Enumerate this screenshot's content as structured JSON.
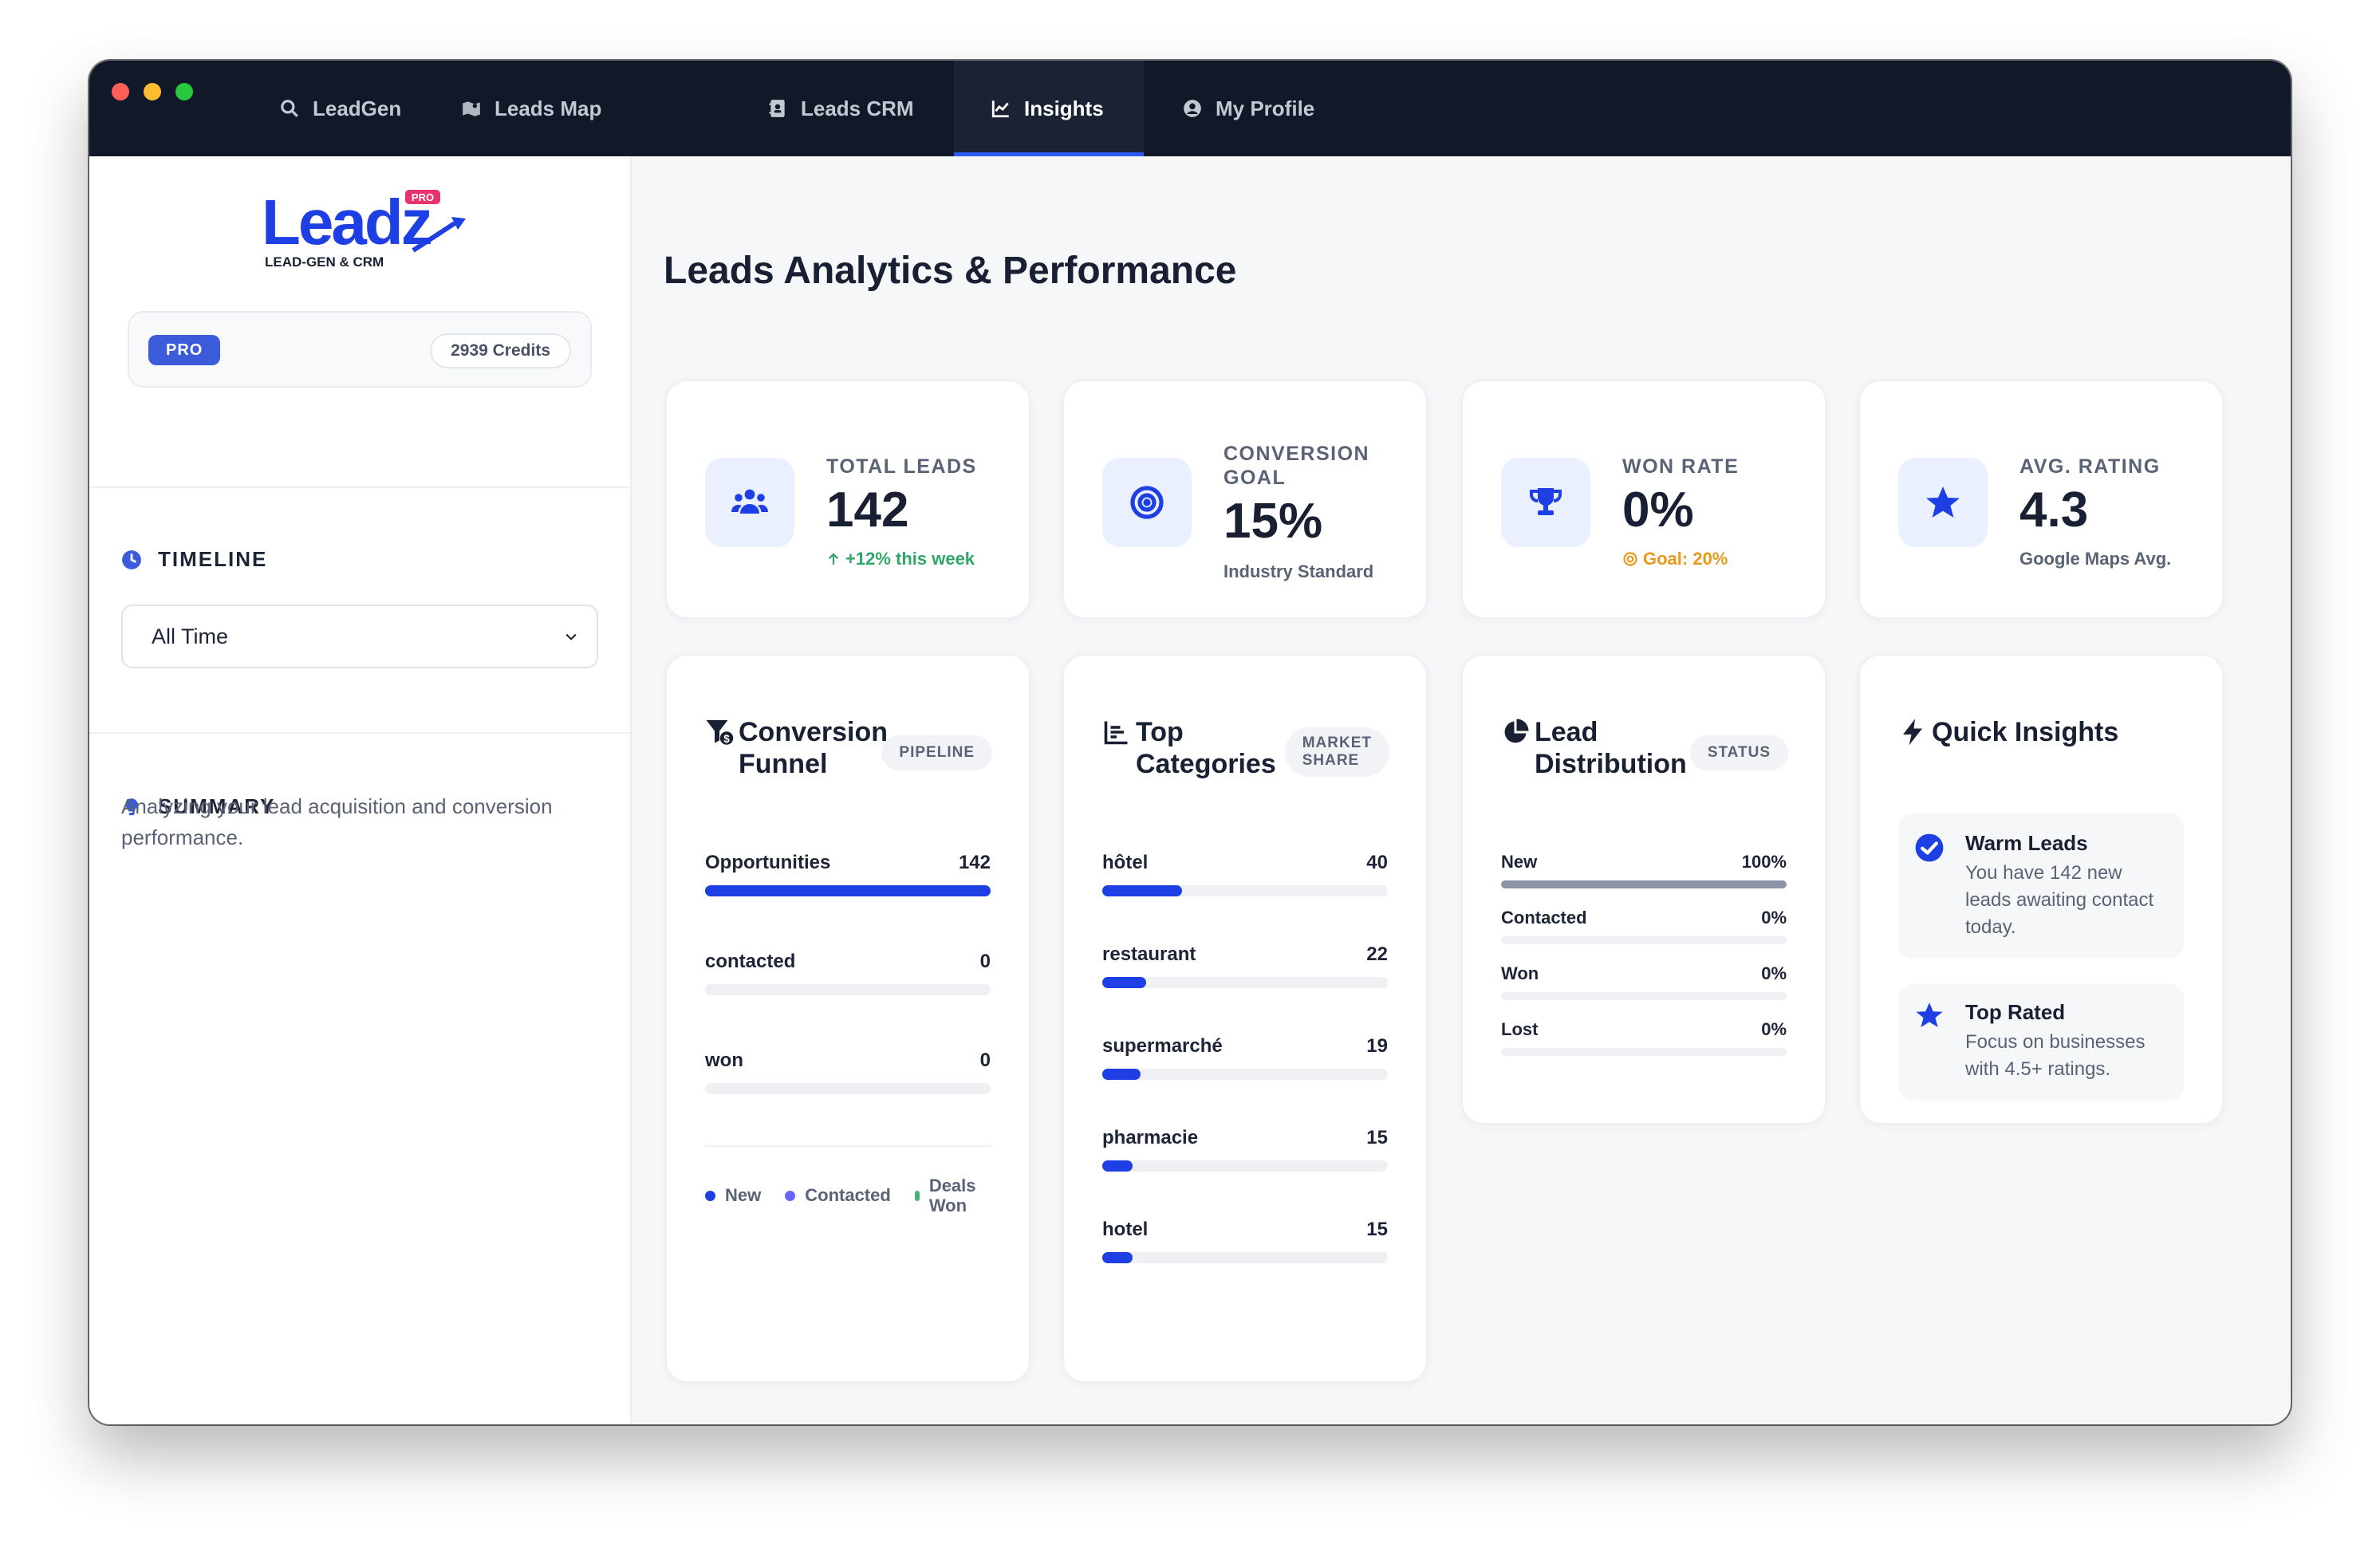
{
  "nav": {
    "tabs": [
      {
        "label": "LeadGen",
        "icon": "search-icon"
      },
      {
        "label": "Leads Map",
        "icon": "map-icon"
      },
      {
        "label": "Leads CRM",
        "icon": "contact-book-icon"
      },
      {
        "label": "Insights",
        "icon": "chart-line-icon",
        "active": true
      },
      {
        "label": "My Profile",
        "icon": "user-circle-icon"
      }
    ]
  },
  "sidebar": {
    "logo": {
      "wordmark": "Leadz",
      "tagline": "LEAD-GEN & CRM",
      "badge": "PRO"
    },
    "plan_badge": "PRO",
    "credits": "2939 Credits",
    "timeline_title": "TIMELINE",
    "timeline_value": "All Time",
    "summary_title": "SUMMARY",
    "summary_text": "Analyzing your lead acquisition and conversion performance."
  },
  "main": {
    "title": "Leads Analytics & Performance",
    "stats": [
      {
        "label": "TOTAL LEADS",
        "value": "142",
        "sub": "+12% this week"
      },
      {
        "label_line1": "CONVERSION",
        "label_line2": "GOAL",
        "value": "15%",
        "sub": "Industry Standard"
      },
      {
        "label": "WON RATE",
        "value": "0%",
        "sub": "Goal: 20%"
      },
      {
        "label": "AVG. RATING",
        "value": "4.3",
        "sub": "Google Maps Avg."
      }
    ],
    "funnel": {
      "title_line1": "Conversion",
      "title_line2": "Funnel",
      "tag": "PIPELINE",
      "rows": [
        {
          "label": "Opportunities",
          "value": "142",
          "fraction": 1.0
        },
        {
          "label": "contacted",
          "value": "0",
          "fraction": 0
        },
        {
          "label": "won",
          "value": "0",
          "fraction": 0
        }
      ],
      "legend": [
        {
          "label": "New",
          "color": "#1d3fe3"
        },
        {
          "label": "Contacted",
          "color": "#6c63ff"
        },
        {
          "label_line1": "Deals",
          "label_line2": "Won",
          "color": "#3fb872"
        }
      ]
    },
    "categories": {
      "title_line1": "Top",
      "title_line2": "Categories",
      "tag_line1": "MARKET",
      "tag_line2": "SHARE",
      "rows": [
        {
          "label": "hôtel",
          "value": "40",
          "fraction": 0.28
        },
        {
          "label": "restaurant",
          "value": "22",
          "fraction": 0.155
        },
        {
          "label": "supermarché",
          "value": "19",
          "fraction": 0.134
        },
        {
          "label": "pharmacie",
          "value": "15",
          "fraction": 0.106
        },
        {
          "label": "hotel",
          "value": "15",
          "fraction": 0.106
        }
      ]
    },
    "distribution": {
      "title_line1": "Lead",
      "title_line2": "Distribution",
      "tag": "STATUS",
      "rows": [
        {
          "label": "New",
          "value": "100%",
          "fraction": 1.0
        },
        {
          "label": "Contacted",
          "value": "0%",
          "fraction": 0
        },
        {
          "label": "Won",
          "value": "0%",
          "fraction": 0
        },
        {
          "label": "Lost",
          "value": "0%",
          "fraction": 0
        }
      ]
    },
    "insights": {
      "title": "Quick Insights",
      "items": [
        {
          "title": "Warm Leads",
          "text": "You have 142 new leads awaiting contact today.",
          "icon": "check-circle-icon"
        },
        {
          "title": "Top Rated",
          "text": "Focus on businesses with 4.5+ ratings.",
          "icon": "star-icon"
        }
      ]
    }
  },
  "colors": {
    "accent": "#1d3fe3",
    "nav_bg": "#111827",
    "success": "#2fa66a",
    "warning": "#e69a18"
  }
}
